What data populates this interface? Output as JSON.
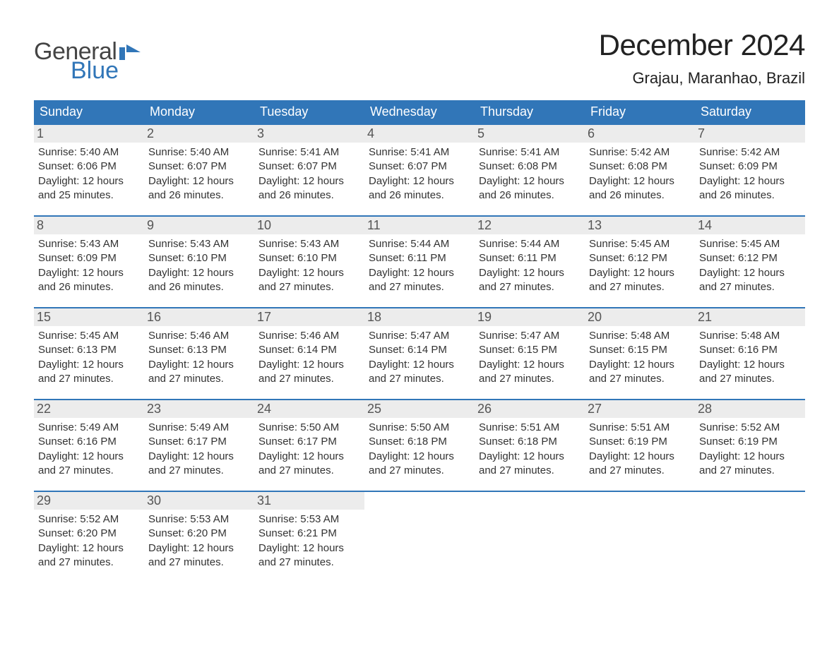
{
  "logo": {
    "word1": "General",
    "word2": "Blue",
    "accent_color": "#3176b8"
  },
  "title": "December 2024",
  "location": "Grajau, Maranhao, Brazil",
  "colors": {
    "header_bg": "#3176b8",
    "header_text": "#ffffff",
    "daynum_bg": "#ececec",
    "text": "#333333",
    "week_border": "#3176b8"
  },
  "typography": {
    "title_fontsize": 42,
    "location_fontsize": 22,
    "dow_fontsize": 18,
    "daynum_fontsize": 18,
    "body_fontsize": 15
  },
  "days_of_week": [
    "Sunday",
    "Monday",
    "Tuesday",
    "Wednesday",
    "Thursday",
    "Friday",
    "Saturday"
  ],
  "weeks": [
    [
      {
        "n": "1",
        "sunrise": "Sunrise: 5:40 AM",
        "sunset": "Sunset: 6:06 PM",
        "dl1": "Daylight: 12 hours",
        "dl2": "and 25 minutes."
      },
      {
        "n": "2",
        "sunrise": "Sunrise: 5:40 AM",
        "sunset": "Sunset: 6:07 PM",
        "dl1": "Daylight: 12 hours",
        "dl2": "and 26 minutes."
      },
      {
        "n": "3",
        "sunrise": "Sunrise: 5:41 AM",
        "sunset": "Sunset: 6:07 PM",
        "dl1": "Daylight: 12 hours",
        "dl2": "and 26 minutes."
      },
      {
        "n": "4",
        "sunrise": "Sunrise: 5:41 AM",
        "sunset": "Sunset: 6:07 PM",
        "dl1": "Daylight: 12 hours",
        "dl2": "and 26 minutes."
      },
      {
        "n": "5",
        "sunrise": "Sunrise: 5:41 AM",
        "sunset": "Sunset: 6:08 PM",
        "dl1": "Daylight: 12 hours",
        "dl2": "and 26 minutes."
      },
      {
        "n": "6",
        "sunrise": "Sunrise: 5:42 AM",
        "sunset": "Sunset: 6:08 PM",
        "dl1": "Daylight: 12 hours",
        "dl2": "and 26 minutes."
      },
      {
        "n": "7",
        "sunrise": "Sunrise: 5:42 AM",
        "sunset": "Sunset: 6:09 PM",
        "dl1": "Daylight: 12 hours",
        "dl2": "and 26 minutes."
      }
    ],
    [
      {
        "n": "8",
        "sunrise": "Sunrise: 5:43 AM",
        "sunset": "Sunset: 6:09 PM",
        "dl1": "Daylight: 12 hours",
        "dl2": "and 26 minutes."
      },
      {
        "n": "9",
        "sunrise": "Sunrise: 5:43 AM",
        "sunset": "Sunset: 6:10 PM",
        "dl1": "Daylight: 12 hours",
        "dl2": "and 26 minutes."
      },
      {
        "n": "10",
        "sunrise": "Sunrise: 5:43 AM",
        "sunset": "Sunset: 6:10 PM",
        "dl1": "Daylight: 12 hours",
        "dl2": "and 27 minutes."
      },
      {
        "n": "11",
        "sunrise": "Sunrise: 5:44 AM",
        "sunset": "Sunset: 6:11 PM",
        "dl1": "Daylight: 12 hours",
        "dl2": "and 27 minutes."
      },
      {
        "n": "12",
        "sunrise": "Sunrise: 5:44 AM",
        "sunset": "Sunset: 6:11 PM",
        "dl1": "Daylight: 12 hours",
        "dl2": "and 27 minutes."
      },
      {
        "n": "13",
        "sunrise": "Sunrise: 5:45 AM",
        "sunset": "Sunset: 6:12 PM",
        "dl1": "Daylight: 12 hours",
        "dl2": "and 27 minutes."
      },
      {
        "n": "14",
        "sunrise": "Sunrise: 5:45 AM",
        "sunset": "Sunset: 6:12 PM",
        "dl1": "Daylight: 12 hours",
        "dl2": "and 27 minutes."
      }
    ],
    [
      {
        "n": "15",
        "sunrise": "Sunrise: 5:45 AM",
        "sunset": "Sunset: 6:13 PM",
        "dl1": "Daylight: 12 hours",
        "dl2": "and 27 minutes."
      },
      {
        "n": "16",
        "sunrise": "Sunrise: 5:46 AM",
        "sunset": "Sunset: 6:13 PM",
        "dl1": "Daylight: 12 hours",
        "dl2": "and 27 minutes."
      },
      {
        "n": "17",
        "sunrise": "Sunrise: 5:46 AM",
        "sunset": "Sunset: 6:14 PM",
        "dl1": "Daylight: 12 hours",
        "dl2": "and 27 minutes."
      },
      {
        "n": "18",
        "sunrise": "Sunrise: 5:47 AM",
        "sunset": "Sunset: 6:14 PM",
        "dl1": "Daylight: 12 hours",
        "dl2": "and 27 minutes."
      },
      {
        "n": "19",
        "sunrise": "Sunrise: 5:47 AM",
        "sunset": "Sunset: 6:15 PM",
        "dl1": "Daylight: 12 hours",
        "dl2": "and 27 minutes."
      },
      {
        "n": "20",
        "sunrise": "Sunrise: 5:48 AM",
        "sunset": "Sunset: 6:15 PM",
        "dl1": "Daylight: 12 hours",
        "dl2": "and 27 minutes."
      },
      {
        "n": "21",
        "sunrise": "Sunrise: 5:48 AM",
        "sunset": "Sunset: 6:16 PM",
        "dl1": "Daylight: 12 hours",
        "dl2": "and 27 minutes."
      }
    ],
    [
      {
        "n": "22",
        "sunrise": "Sunrise: 5:49 AM",
        "sunset": "Sunset: 6:16 PM",
        "dl1": "Daylight: 12 hours",
        "dl2": "and 27 minutes."
      },
      {
        "n": "23",
        "sunrise": "Sunrise: 5:49 AM",
        "sunset": "Sunset: 6:17 PM",
        "dl1": "Daylight: 12 hours",
        "dl2": "and 27 minutes."
      },
      {
        "n": "24",
        "sunrise": "Sunrise: 5:50 AM",
        "sunset": "Sunset: 6:17 PM",
        "dl1": "Daylight: 12 hours",
        "dl2": "and 27 minutes."
      },
      {
        "n": "25",
        "sunrise": "Sunrise: 5:50 AM",
        "sunset": "Sunset: 6:18 PM",
        "dl1": "Daylight: 12 hours",
        "dl2": "and 27 minutes."
      },
      {
        "n": "26",
        "sunrise": "Sunrise: 5:51 AM",
        "sunset": "Sunset: 6:18 PM",
        "dl1": "Daylight: 12 hours",
        "dl2": "and 27 minutes."
      },
      {
        "n": "27",
        "sunrise": "Sunrise: 5:51 AM",
        "sunset": "Sunset: 6:19 PM",
        "dl1": "Daylight: 12 hours",
        "dl2": "and 27 minutes."
      },
      {
        "n": "28",
        "sunrise": "Sunrise: 5:52 AM",
        "sunset": "Sunset: 6:19 PM",
        "dl1": "Daylight: 12 hours",
        "dl2": "and 27 minutes."
      }
    ],
    [
      {
        "n": "29",
        "sunrise": "Sunrise: 5:52 AM",
        "sunset": "Sunset: 6:20 PM",
        "dl1": "Daylight: 12 hours",
        "dl2": "and 27 minutes."
      },
      {
        "n": "30",
        "sunrise": "Sunrise: 5:53 AM",
        "sunset": "Sunset: 6:20 PM",
        "dl1": "Daylight: 12 hours",
        "dl2": "and 27 minutes."
      },
      {
        "n": "31",
        "sunrise": "Sunrise: 5:53 AM",
        "sunset": "Sunset: 6:21 PM",
        "dl1": "Daylight: 12 hours",
        "dl2": "and 27 minutes."
      },
      null,
      null,
      null,
      null
    ]
  ]
}
